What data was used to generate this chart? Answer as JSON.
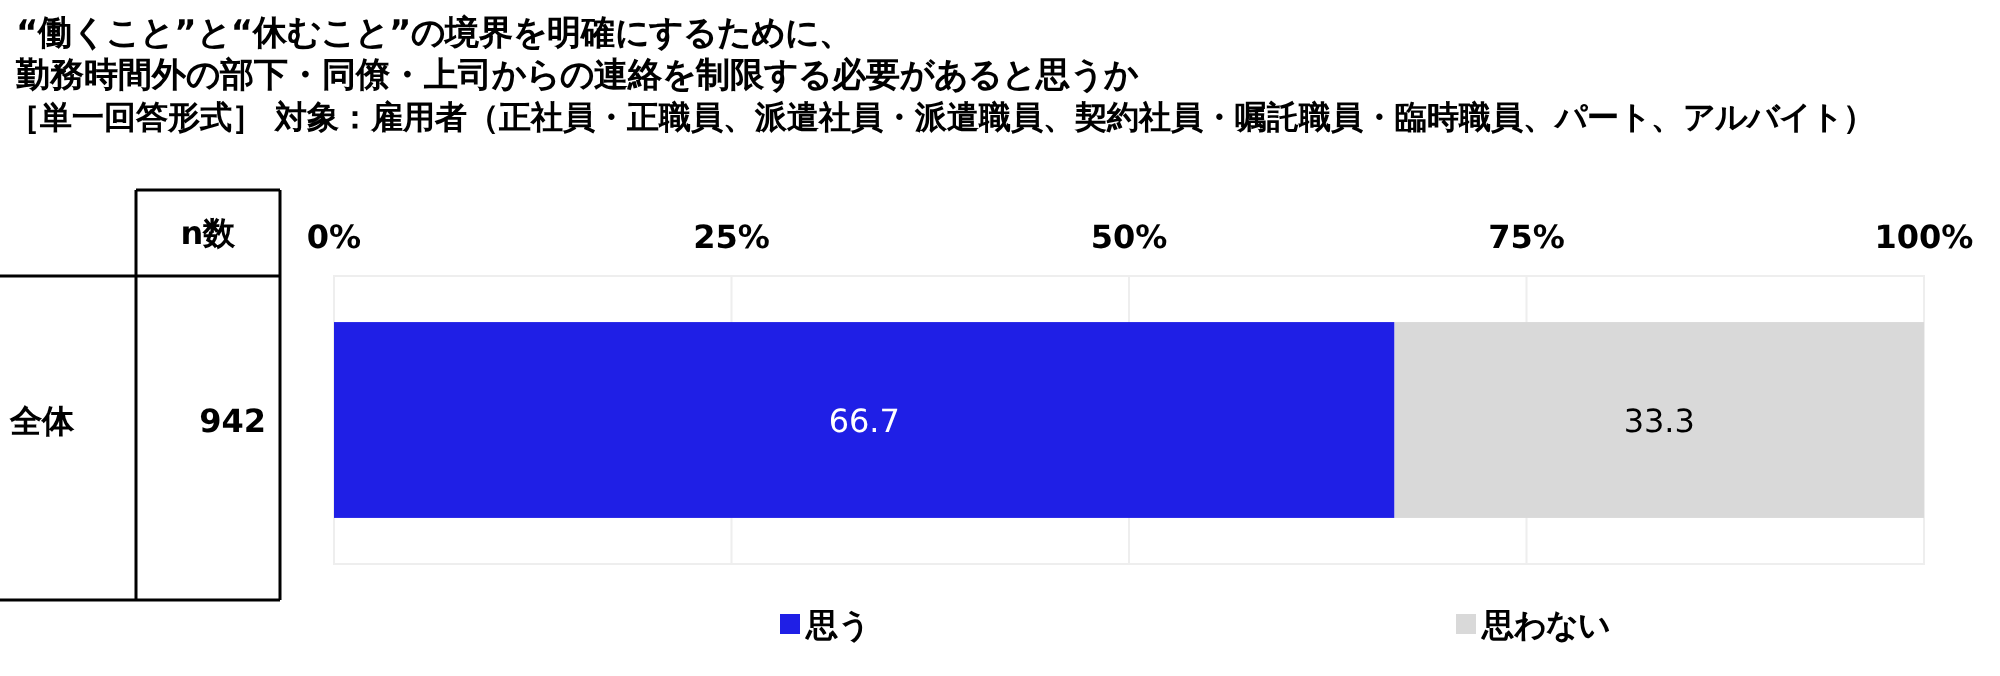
{
  "chart_data": {
    "type": "bar",
    "orientation": "horizontal",
    "stacked": true,
    "title": "“働くこと”と“休むこと”の境界を明確にするために、",
    "subtitle": "勤務時間外の部下・同僚・上司からの連絡を制限する必要があると思うか",
    "annotations": [
      "［単一回答形式］ 対象：雇用者（正社員・正職員、派遣社員・派遣職員、契約社員・嘱託職員・臨時職員、パート、アルバイト）",
      "n数",
      "942"
    ],
    "categories": [
      "全体"
    ],
    "series": [
      {
        "name": "思う",
        "color": "#1f1fe6",
        "values": [
          66.7
        ]
      },
      {
        "name": "思わない",
        "color": "#d9d9d9",
        "values": [
          33.3
        ]
      }
    ],
    "xlim": [
      0,
      100
    ],
    "xticks": [
      {
        "value": 0,
        "label": "0%"
      },
      {
        "value": 25,
        "label": "25%"
      },
      {
        "value": 50,
        "label": "50%"
      },
      {
        "value": 75,
        "label": "75%"
      },
      {
        "value": 100,
        "label": "100%"
      }
    ],
    "grid": "x",
    "legend": "bottom",
    "data_labels": true
  }
}
